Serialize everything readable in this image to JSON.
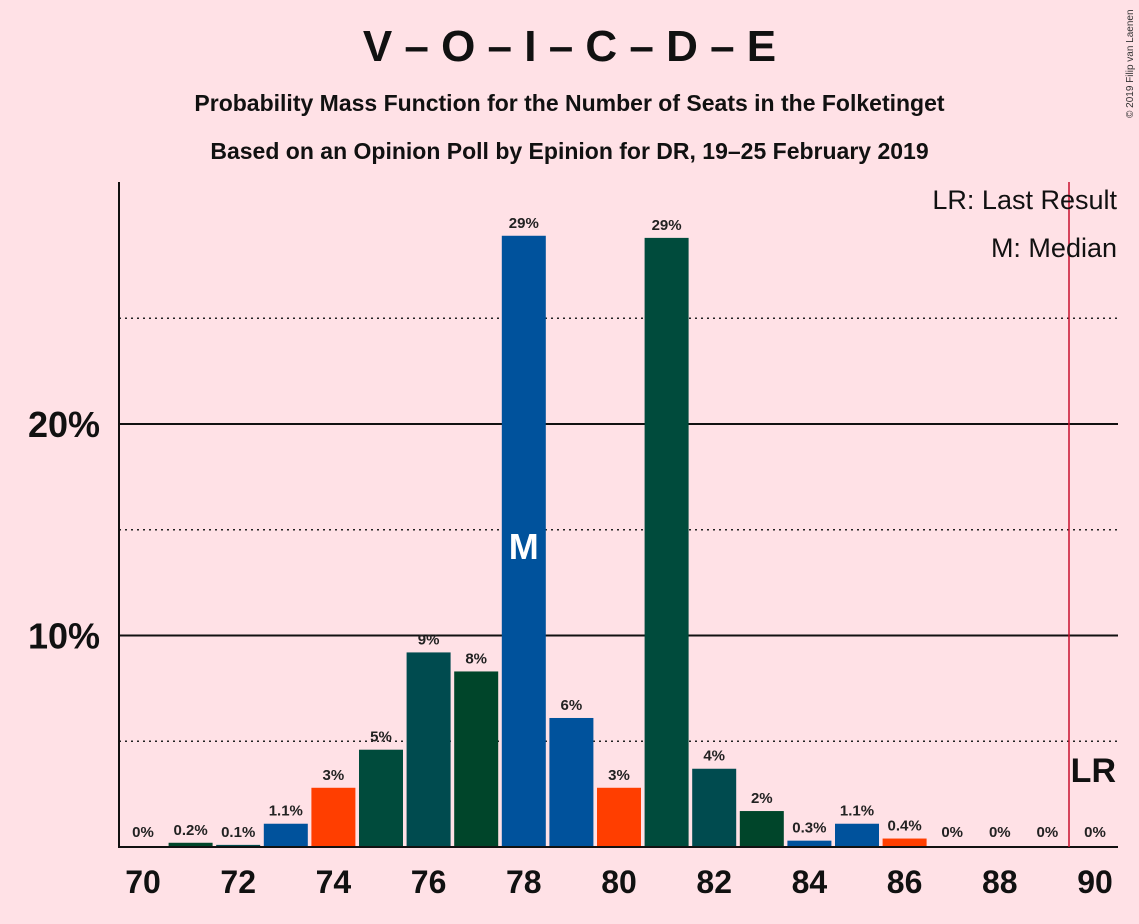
{
  "title": "V – O – I – C – D – E",
  "subtitle_line1": "Probability Mass Function for the Number of Seats in the Folketinget",
  "subtitle_line2": "Based on an Opinion Poll by Epinion for DR, 19–25 February 2019",
  "copyright": "© 2019 Filip van Laenen",
  "legend": {
    "last_result": "LR: Last Result",
    "median": "M: Median"
  },
  "markers": {
    "median_label": "M",
    "last_result_label": "LR"
  },
  "chart_data": {
    "type": "bar",
    "x": [
      70,
      71,
      72,
      73,
      74,
      75,
      76,
      77,
      78,
      79,
      80,
      81,
      82,
      83,
      84,
      85,
      86,
      87,
      88,
      89,
      90
    ],
    "values": [
      0,
      0.2,
      0.1,
      1.1,
      2.8,
      4.6,
      9.2,
      8.3,
      28.9,
      6.1,
      2.8,
      28.8,
      3.7,
      1.7,
      0.3,
      1.1,
      0.4,
      0,
      0,
      0,
      0
    ],
    "labels": [
      "0%",
      "0.2%",
      "0.1%",
      "1.1%",
      "3%",
      "5%",
      "9%",
      "8%",
      "29%",
      "6%",
      "3%",
      "29%",
      "4%",
      "2%",
      "0.3%",
      "1.1%",
      "0.4%",
      "0%",
      "0%",
      "0%",
      "0%"
    ],
    "colors": [
      "#00529c",
      "#00452a",
      "#004b4f",
      "#00529c",
      "#ff3e00",
      "#004b3c",
      "#004b4f",
      "#00452a",
      "#00529c",
      "#00529c",
      "#ff3e00",
      "#004b3c",
      "#004b4f",
      "#00452a",
      "#00529c",
      "#00529c",
      "#ff3e00",
      "#004b3c",
      "#004b4f",
      "#00452a",
      "#00529c"
    ],
    "x_tick_labels": [
      "70",
      "72",
      "74",
      "76",
      "78",
      "80",
      "82",
      "84",
      "86",
      "88",
      "90"
    ],
    "y_tick_labels": [
      "10%",
      "20%"
    ],
    "ylim": [
      0,
      31.5
    ],
    "median": 78,
    "last_result": 90,
    "last_result_color": "#c8102e",
    "grid_solid": [
      10,
      20
    ],
    "grid_dotted": [
      5,
      15,
      25
    ],
    "legend_position": "top-right"
  }
}
